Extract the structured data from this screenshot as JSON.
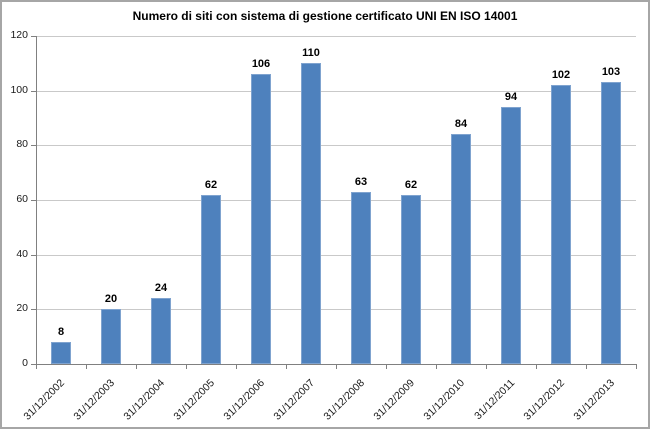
{
  "chart_data": {
    "type": "bar",
    "title": "Numero di siti con sistema di gestione certificato UNI EN ISO 14001",
    "categories": [
      "31/12/2002",
      "31/12/2003",
      "31/12/2004",
      "31/12/2005",
      "31/12/2006",
      "31/12/2007",
      "31/12/2008",
      "31/12/2009",
      "31/12/2010",
      "31/12/2011",
      "31/12/2012",
      "31/12/2013"
    ],
    "values": [
      8,
      20,
      24,
      62,
      106,
      110,
      63,
      62,
      84,
      94,
      102,
      103
    ],
    "xlabel": "",
    "ylabel": "",
    "ylim": [
      0,
      120
    ],
    "yticks": [
      0,
      20,
      40,
      60,
      80,
      100,
      120
    ],
    "grid": true,
    "legend_position": "none",
    "data_labels_shown": true,
    "colors": {
      "bar_fill": "#4e81bd",
      "bar_border": "#7fa3cf",
      "gridline": "#c9c9c9",
      "axis": "#808080",
      "text": "#1a1a1a",
      "title_text": "#000000",
      "chart_border": "#a6a6a6",
      "background": "#ffffff"
    }
  }
}
